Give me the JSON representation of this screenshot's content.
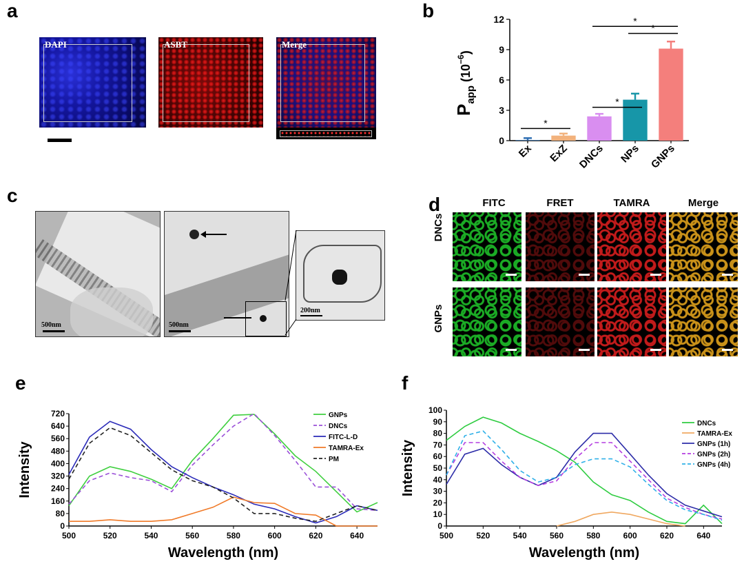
{
  "panels": {
    "a": "a",
    "b": "b",
    "c": "c",
    "d": "d",
    "e": "e",
    "f": "f"
  },
  "panel_a": {
    "titles": [
      "DAPI",
      "ASBT",
      "Merge"
    ]
  },
  "panel_c": {
    "scale_labels": [
      "500nm",
      "500nm",
      "200nm"
    ]
  },
  "panel_d": {
    "columns": [
      "FITC",
      "FRET",
      "TAMRA",
      "Merge"
    ],
    "rows": [
      "DNCs",
      "GNPs"
    ],
    "colors": {
      "FITC": "#1fbf2a",
      "FRET": "#b31a1a",
      "TAMRA": "#d81e1e",
      "Merge": "#e0a21c"
    }
  },
  "chart_data": [
    {
      "id": "b",
      "type": "bar",
      "categories": [
        "Ex",
        "ExZ",
        "DNCs",
        "NPs",
        "GNPs"
      ],
      "values": [
        0.05,
        0.5,
        2.4,
        4.05,
        9.1
      ],
      "errors": [
        0.2,
        0.2,
        0.25,
        0.6,
        0.7
      ],
      "colors": [
        "#2f6fb3",
        "#f2b27c",
        "#d98ef0",
        "#1796a8",
        "#f47f7c"
      ],
      "ylabel_main": "P",
      "ylabel_sub": "app",
      "ylabel_unit": "(10",
      "ylabel_exp": "−6",
      "ylabel_close": ")",
      "ylim": [
        0,
        12
      ],
      "yticks": [
        0,
        3,
        6,
        9,
        12
      ],
      "significance": [
        {
          "from": 0,
          "to": 1,
          "y": 1.2,
          "label": "*"
        },
        {
          "from": 2,
          "to": 3,
          "y": 3.3,
          "label": "*"
        },
        {
          "from": 3,
          "to": 4,
          "y": 10.6,
          "label": "*"
        },
        {
          "from": 2,
          "to": 4,
          "y": 11.3,
          "label": "*"
        }
      ]
    },
    {
      "id": "e",
      "type": "line",
      "xlabel": "Wavelength (nm)",
      "ylabel": "Intensity",
      "xlim": [
        500,
        650
      ],
      "ylim": [
        0,
        720
      ],
      "xticks": [
        500,
        520,
        540,
        560,
        580,
        600,
        620,
        640
      ],
      "yticks": [
        0,
        80,
        160,
        240,
        320,
        400,
        480,
        560,
        640,
        720
      ],
      "series": [
        {
          "name": "GNPs",
          "color": "#3fcf3f",
          "dash": false,
          "x": [
            500,
            510,
            520,
            530,
            540,
            550,
            560,
            570,
            580,
            590,
            600,
            610,
            620,
            630,
            640,
            650
          ],
          "y": [
            130,
            320,
            380,
            350,
            300,
            240,
            420,
            560,
            710,
            715,
            590,
            450,
            350,
            220,
            90,
            150
          ]
        },
        {
          "name": "DNCs",
          "color": "#9a4fd8",
          "dash": true,
          "x": [
            500,
            510,
            520,
            530,
            540,
            550,
            560,
            570,
            580,
            590,
            600,
            610,
            620,
            630,
            640,
            650
          ],
          "y": [
            140,
            290,
            340,
            310,
            290,
            220,
            390,
            520,
            640,
            720,
            580,
            420,
            250,
            250,
            110,
            100
          ]
        },
        {
          "name": "FITC-L-D",
          "color": "#2a2ab8",
          "dash": false,
          "x": [
            500,
            510,
            520,
            530,
            540,
            550,
            560,
            570,
            580,
            590,
            600,
            610,
            620,
            630,
            640,
            650
          ],
          "y": [
            330,
            570,
            670,
            620,
            490,
            380,
            310,
            250,
            200,
            140,
            110,
            60,
            20,
            60,
            130,
            100
          ]
        },
        {
          "name": "TAMRA-Ex",
          "color": "#f07a28",
          "dash": false,
          "x": [
            500,
            510,
            520,
            530,
            540,
            550,
            560,
            570,
            580,
            590,
            600,
            610,
            620,
            630,
            640,
            650
          ],
          "y": [
            30,
            30,
            40,
            30,
            30,
            40,
            80,
            120,
            185,
            150,
            145,
            80,
            70,
            0,
            0,
            0
          ]
        },
        {
          "name": "PM",
          "color": "#222222",
          "dash": true,
          "x": [
            500,
            510,
            520,
            530,
            540,
            550,
            560,
            570,
            580,
            590,
            600,
            610,
            620,
            630,
            640,
            650
          ],
          "y": [
            300,
            530,
            630,
            580,
            470,
            360,
            290,
            250,
            180,
            80,
            80,
            50,
            30,
            80,
            130,
            100
          ]
        }
      ]
    },
    {
      "id": "f",
      "type": "line",
      "xlabel": "Wavelength (nm)",
      "ylabel": "Intensity",
      "xlim": [
        500,
        650
      ],
      "ylim": [
        0,
        100
      ],
      "xticks": [
        500,
        520,
        540,
        560,
        580,
        600,
        620,
        640
      ],
      "yticks": [
        0,
        10,
        20,
        30,
        40,
        50,
        60,
        70,
        80,
        90,
        100
      ],
      "series": [
        {
          "name": "DNCs",
          "color": "#2ecc40",
          "dash": false,
          "x": [
            500,
            510,
            520,
            530,
            540,
            550,
            560,
            570,
            580,
            590,
            600,
            610,
            620,
            630,
            640,
            650
          ],
          "y": [
            74,
            86,
            94,
            89,
            80,
            73,
            65,
            55,
            38,
            27,
            22,
            12,
            4,
            2,
            18,
            2
          ]
        },
        {
          "name": "TAMRA-Ex",
          "color": "#f0a860",
          "dash": false,
          "x": [
            560,
            570,
            580,
            590,
            600,
            610,
            620,
            630
          ],
          "y": [
            0,
            4,
            10,
            12,
            10,
            6,
            2,
            0
          ]
        },
        {
          "name": "GNPs (1h)",
          "color": "#2c2ca8",
          "dash": false,
          "x": [
            500,
            510,
            520,
            530,
            540,
            550,
            560,
            570,
            580,
            590,
            600,
            610,
            620,
            630,
            640,
            650
          ],
          "y": [
            36,
            62,
            67,
            53,
            42,
            35,
            42,
            64,
            80,
            80,
            62,
            44,
            28,
            18,
            13,
            8
          ]
        },
        {
          "name": "GNPs (2h)",
          "color": "#b43de0",
          "dash": true,
          "x": [
            500,
            510,
            520,
            530,
            540,
            550,
            560,
            570,
            580,
            590,
            600,
            610,
            620,
            630,
            640,
            650
          ],
          "y": [
            44,
            72,
            72,
            56,
            42,
            35,
            39,
            58,
            72,
            72,
            56,
            40,
            24,
            16,
            10,
            6
          ]
        },
        {
          "name": "GNPs (4h)",
          "color": "#2fb0e8",
          "dash": true,
          "x": [
            500,
            510,
            520,
            530,
            540,
            550,
            560,
            570,
            580,
            590,
            600,
            610,
            620,
            630,
            640,
            650
          ],
          "y": [
            44,
            78,
            82,
            66,
            48,
            38,
            42,
            53,
            58,
            58,
            51,
            36,
            22,
            14,
            10,
            5
          ]
        }
      ]
    }
  ]
}
